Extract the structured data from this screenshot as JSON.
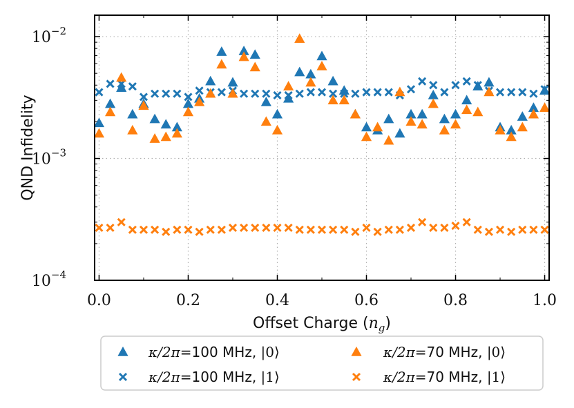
{
  "chart_data": {
    "type": "scatter",
    "xlabel_prefix": "Offset Charge (",
    "xlabel_var": "n",
    "xlabel_sub": "g",
    "xlabel_suffix": ")",
    "ylabel": "QND Infidelity",
    "xlim": [
      -0.01,
      1.01
    ],
    "ylim": [
      0.0001,
      0.015
    ],
    "yscale": "log",
    "grid": true,
    "x_ticks": [
      {
        "value": 0.0,
        "label": "0.0"
      },
      {
        "value": 0.2,
        "label": "0.2"
      },
      {
        "value": 0.4,
        "label": "0.4"
      },
      {
        "value": 0.6,
        "label": "0.6"
      },
      {
        "value": 0.8,
        "label": "0.8"
      },
      {
        "value": 1.0,
        "label": "1.0"
      }
    ],
    "y_ticks": [
      {
        "value": 0.0001,
        "base": "10",
        "exp": "−4"
      },
      {
        "value": 0.001,
        "base": "10",
        "exp": "−3"
      },
      {
        "value": 0.01,
        "base": "10",
        "exp": "−2"
      }
    ],
    "legend_position": "below",
    "x": [
      0.0,
      0.025,
      0.05,
      0.075,
      0.1,
      0.125,
      0.15,
      0.175,
      0.2,
      0.225,
      0.25,
      0.275,
      0.3,
      0.325,
      0.35,
      0.375,
      0.4,
      0.425,
      0.45,
      0.475,
      0.5,
      0.525,
      0.55,
      0.575,
      0.6,
      0.625,
      0.65,
      0.675,
      0.7,
      0.725,
      0.75,
      0.775,
      0.8,
      0.825,
      0.85,
      0.875,
      0.9,
      0.925,
      0.95,
      0.975,
      1.0
    ],
    "series": [
      {
        "name": "κ/2π=100 MHz, |0⟩",
        "legend_kappa": "κ/2π",
        "legend_freq": "=100 MHz, ",
        "legend_state": "|0⟩",
        "marker": "triangle",
        "color": "#1f77b4",
        "values": [
          0.00195,
          0.0028,
          0.0038,
          0.0023,
          0.0028,
          0.0021,
          0.0019,
          0.0018,
          0.0028,
          0.0031,
          0.0043,
          0.0075,
          0.0042,
          0.0076,
          0.0071,
          0.0029,
          0.0023,
          0.0031,
          0.0051,
          0.0049,
          0.0069,
          0.0043,
          0.0036,
          0.0023,
          0.0018,
          0.0017,
          0.0021,
          0.0016,
          0.0023,
          0.0023,
          0.0033,
          0.0021,
          0.0023,
          0.003,
          0.0039,
          0.0042,
          0.0018,
          0.0017,
          0.0022,
          0.0026,
          0.0036
        ]
      },
      {
        "name": "κ/2π=100 MHz, |1⟩",
        "legend_kappa": "κ/2π",
        "legend_freq": "=100 MHz, ",
        "legend_state": "|1⟩",
        "marker": "x",
        "color": "#1f77b4",
        "values": [
          0.0035,
          0.0041,
          0.0041,
          0.0039,
          0.0032,
          0.0034,
          0.0034,
          0.0034,
          0.0032,
          0.0036,
          0.0035,
          0.0035,
          0.0036,
          0.0034,
          0.0034,
          0.0034,
          0.0033,
          0.0033,
          0.0034,
          0.0035,
          0.0035,
          0.0034,
          0.0034,
          0.0034,
          0.0035,
          0.0035,
          0.0035,
          0.0033,
          0.0037,
          0.0043,
          0.004,
          0.0035,
          0.004,
          0.0043,
          0.004,
          0.0036,
          0.0035,
          0.0035,
          0.0035,
          0.0034,
          0.0037
        ]
      },
      {
        "name": "κ/2π=70 MHz, |0⟩",
        "legend_kappa": "κ/2π",
        "legend_freq": "=70 MHz, ",
        "legend_state": "|0⟩",
        "marker": "triangle",
        "color": "#ff7f0e",
        "values": [
          0.0016,
          0.0024,
          0.0046,
          0.0017,
          0.0027,
          0.00145,
          0.0015,
          0.0016,
          0.0024,
          0.0029,
          0.0034,
          0.0059,
          0.0034,
          0.0068,
          0.0056,
          0.002,
          0.0017,
          0.0039,
          0.0096,
          0.0042,
          0.0057,
          0.003,
          0.003,
          0.0023,
          0.0015,
          0.0018,
          0.0014,
          0.0035,
          0.002,
          0.0019,
          0.0028,
          0.0017,
          0.0019,
          0.0025,
          0.0024,
          0.0035,
          0.0017,
          0.0015,
          0.0018,
          0.0023,
          0.0026
        ]
      },
      {
        "name": "κ/2π=70 MHz, |1⟩",
        "legend_kappa": "κ/2π",
        "legend_freq": "=70 MHz, ",
        "legend_state": "|1⟩",
        "marker": "x",
        "color": "#ff7f0e",
        "values": [
          0.00027,
          0.00027,
          0.0003,
          0.00026,
          0.00026,
          0.00026,
          0.00025,
          0.00026,
          0.00026,
          0.00025,
          0.00026,
          0.00026,
          0.00027,
          0.00027,
          0.00027,
          0.00027,
          0.00027,
          0.00027,
          0.00026,
          0.00026,
          0.00026,
          0.00026,
          0.00026,
          0.00025,
          0.00027,
          0.00025,
          0.00026,
          0.00026,
          0.00027,
          0.0003,
          0.00027,
          0.00027,
          0.00028,
          0.0003,
          0.00026,
          0.00025,
          0.00026,
          0.00025,
          0.00026,
          0.00026,
          0.00026
        ]
      }
    ]
  }
}
